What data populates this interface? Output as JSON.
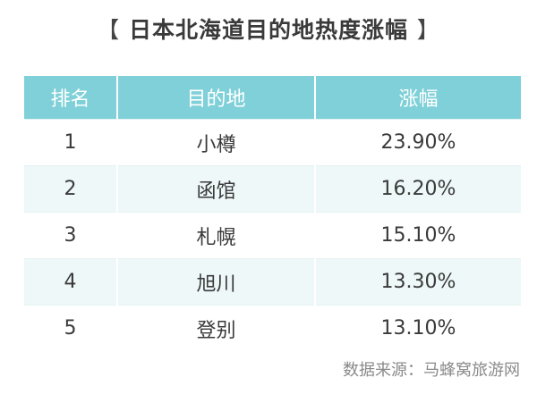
{
  "title": {
    "open_bracket": "【",
    "text": "日本北海道目的地热度涨幅",
    "close_bracket": "】"
  },
  "table": {
    "headers": [
      "排名",
      "目的地",
      "涨幅"
    ],
    "rows": [
      {
        "rank": "1",
        "destination": "小樽",
        "growth": "23.90%"
      },
      {
        "rank": "2",
        "destination": "函馆",
        "growth": "16.20%"
      },
      {
        "rank": "3",
        "destination": "札幌",
        "growth": "15.10%"
      },
      {
        "rank": "4",
        "destination": "旭川",
        "growth": "13.30%"
      },
      {
        "rank": "5",
        "destination": "登别",
        "growth": "13.10%"
      }
    ]
  },
  "source": "数据来源：马蜂窝旅游网",
  "colors": {
    "header_bg": "#7fd0d8",
    "alt_row_bg": "#eef8f9"
  }
}
